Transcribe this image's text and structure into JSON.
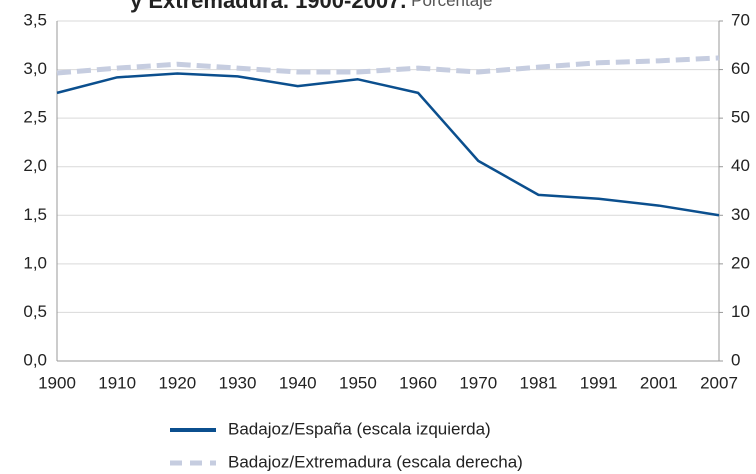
{
  "chart_data": {
    "type": "line",
    "title": "y Extremadura. 1900-2007.",
    "subtitle": "Porcentaje",
    "categories": [
      "1900",
      "1910",
      "1920",
      "1930",
      "1940",
      "1950",
      "1960",
      "1970",
      "1981",
      "1991",
      "2001",
      "2007"
    ],
    "series": [
      {
        "name": "Badajoz/España (escala izquierda)",
        "color": "#0b4f8e",
        "axis": "y",
        "values": [
          2.76,
          2.92,
          2.96,
          2.93,
          2.83,
          2.9,
          2.76,
          2.06,
          1.71,
          1.67,
          1.6,
          1.5
        ]
      },
      {
        "name": "Badajoz/Extremadura (escala derecha)",
        "color": "#c6cde0",
        "axis": "y2",
        "values": [
          59.3,
          60.3,
          61.1,
          60.3,
          59.5,
          59.5,
          60.3,
          59.5,
          60.5,
          61.4,
          61.8,
          62.4
        ]
      }
    ],
    "ylim": [
      0,
      3.5
    ],
    "yticks": [
      {
        "value": 0,
        "label": "0,0"
      },
      {
        "value": 0.5,
        "label": "0,5"
      },
      {
        "value": 1,
        "label": "1,0"
      },
      {
        "value": 1.5,
        "label": "1,5"
      },
      {
        "value": 2,
        "label": "2,0"
      },
      {
        "value": 2.5,
        "label": "2,5"
      },
      {
        "value": 3,
        "label": "3,0"
      },
      {
        "value": 3.5,
        "label": "3,5"
      }
    ],
    "y2lim": [
      0,
      70
    ],
    "y2ticks": [
      0,
      10,
      20,
      30,
      40,
      50,
      60,
      70
    ],
    "grid": true
  }
}
